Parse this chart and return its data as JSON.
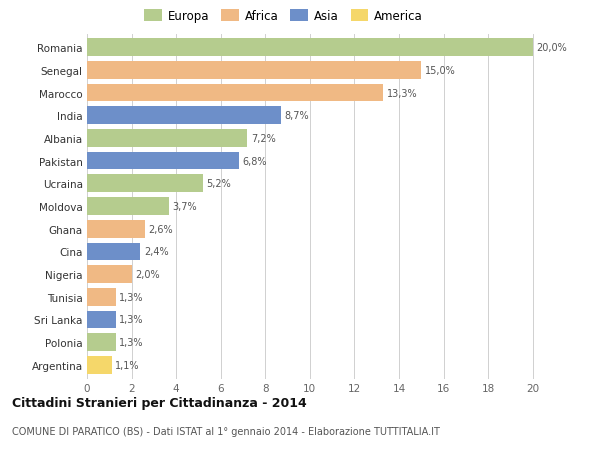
{
  "countries": [
    "Romania",
    "Senegal",
    "Marocco",
    "India",
    "Albania",
    "Pakistan",
    "Ucraina",
    "Moldova",
    "Ghana",
    "Cina",
    "Nigeria",
    "Tunisia",
    "Sri Lanka",
    "Polonia",
    "Argentina"
  ],
  "values": [
    20.0,
    15.0,
    13.3,
    8.7,
    7.2,
    6.8,
    5.2,
    3.7,
    2.6,
    2.4,
    2.0,
    1.3,
    1.3,
    1.3,
    1.1
  ],
  "labels": [
    "20,0%",
    "15,0%",
    "13,3%",
    "8,7%",
    "7,2%",
    "6,8%",
    "5,2%",
    "3,7%",
    "2,6%",
    "2,4%",
    "2,0%",
    "1,3%",
    "1,3%",
    "1,3%",
    "1,1%"
  ],
  "continents": [
    "Europa",
    "Africa",
    "Africa",
    "Asia",
    "Europa",
    "Asia",
    "Europa",
    "Europa",
    "Africa",
    "Asia",
    "Africa",
    "Africa",
    "Asia",
    "Europa",
    "America"
  ],
  "colors": {
    "Europa": "#b5cc8e",
    "Africa": "#f0b984",
    "Asia": "#6d8fc9",
    "America": "#f5d76a"
  },
  "legend_order": [
    "Europa",
    "Africa",
    "Asia",
    "America"
  ],
  "title": "Cittadini Stranieri per Cittadinanza - 2014",
  "subtitle": "COMUNE DI PARATICO (BS) - Dati ISTAT al 1° gennaio 2014 - Elaborazione TUTTITALIA.IT",
  "xlim": [
    0,
    21
  ],
  "xticks": [
    0,
    2,
    4,
    6,
    8,
    10,
    12,
    14,
    16,
    18,
    20
  ],
  "bg_color": "#ffffff",
  "grid_color": "#d0d0d0",
  "bar_height": 0.78
}
